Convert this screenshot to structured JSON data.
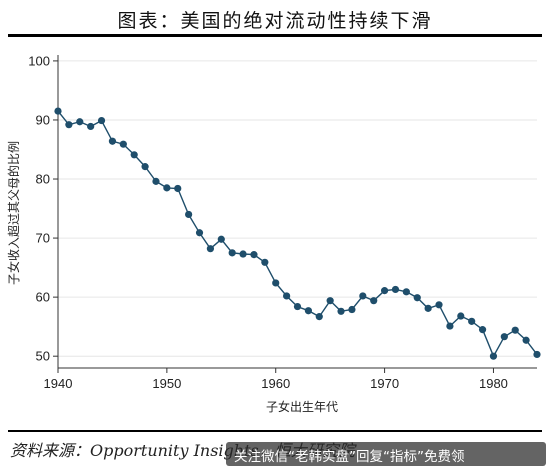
{
  "header": {
    "title": "图表：美国的绝对流动性持续下滑"
  },
  "footer": {
    "source": "资料来源：Opportunity Insights，恒大研究院",
    "watermark": "关注微信“老韩实盘”回复“指标”免费领"
  },
  "chart_data": {
    "type": "line",
    "title": "",
    "xlabel": "子女出生年代",
    "ylabel": "子女收入超过其父母的比例",
    "xlim": [
      1940,
      1984
    ],
    "ylim": [
      48,
      101
    ],
    "xticks": [
      1940,
      1950,
      1960,
      1970,
      1980
    ],
    "yticks": [
      50,
      60,
      70,
      80,
      90,
      100
    ],
    "grid": true,
    "legend": "none",
    "line_color": "#1f4e6b",
    "series": [
      {
        "x": [
          1940,
          1941,
          1942,
          1943,
          1944,
          1945,
          1946,
          1947,
          1948,
          1949,
          1950,
          1951,
          1952,
          1953,
          1954,
          1955,
          1956,
          1957,
          1958,
          1959,
          1960,
          1961,
          1962,
          1963,
          1964,
          1965,
          1966,
          1967,
          1968,
          1969,
          1970,
          1971,
          1972,
          1973,
          1974,
          1975,
          1976,
          1977,
          1978,
          1979,
          1980,
          1981,
          1982,
          1983,
          1984
        ],
        "values": [
          91.5,
          89.2,
          89.7,
          88.9,
          89.9,
          86.4,
          85.9,
          84.1,
          82.1,
          79.6,
          78.5,
          78.4,
          74.0,
          70.9,
          68.2,
          69.8,
          67.5,
          67.3,
          67.2,
          65.9,
          62.4,
          60.2,
          58.4,
          57.7,
          56.7,
          59.4,
          57.6,
          57.9,
          60.2,
          59.4,
          61.1,
          61.3,
          60.9,
          59.9,
          58.1,
          58.7,
          55.1,
          56.8,
          55.9,
          54.5,
          50.0,
          53.3,
          54.4,
          52.7,
          50.3
        ]
      }
    ]
  }
}
